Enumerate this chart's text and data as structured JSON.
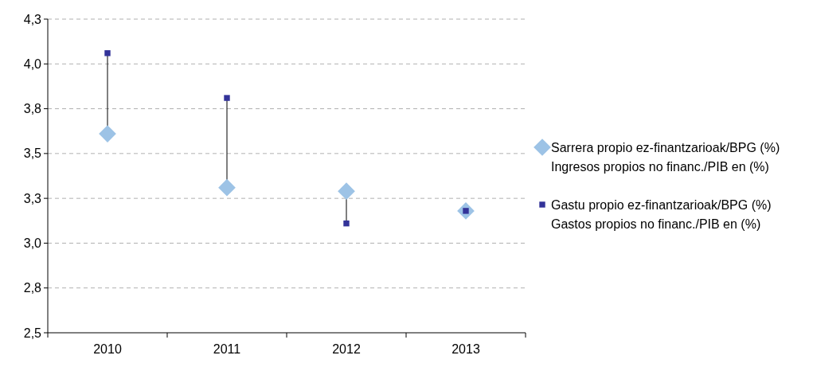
{
  "chart_data": {
    "type": "scatter",
    "categories": [
      "2010",
      "2011",
      "2012",
      "2013"
    ],
    "series": [
      {
        "name": "Sarrera propio ez-finantzarioak/BPG (%)\nIngresos propios no financ./PIB en (%)",
        "color": "#9dc3e6",
        "marker": "diamond",
        "values": [
          3.61,
          3.31,
          3.29,
          3.18
        ]
      },
      {
        "name": "Gastu propio ez-finantzarioak/BPG (%)\nGastos propios no financ./PIB en (%)",
        "color": "#333399",
        "marker": "square",
        "values": [
          4.06,
          3.81,
          3.11,
          3.18
        ]
      }
    ],
    "ylim": [
      2.5,
      4.25
    ],
    "yticks": [
      {
        "value": 2.5,
        "label": "2,5"
      },
      {
        "value": 2.75,
        "label": "2,8"
      },
      {
        "value": 3,
        "label": "3,0"
      },
      {
        "value": 3.25,
        "label": "3,3"
      },
      {
        "value": 3.5,
        "label": "3,5"
      },
      {
        "value": 3.75,
        "label": "3,8"
      },
      {
        "value": 4,
        "label": "4,0"
      },
      {
        "value": 4.25,
        "label": "4,3"
      }
    ],
    "grid": "y",
    "legend": "right"
  }
}
